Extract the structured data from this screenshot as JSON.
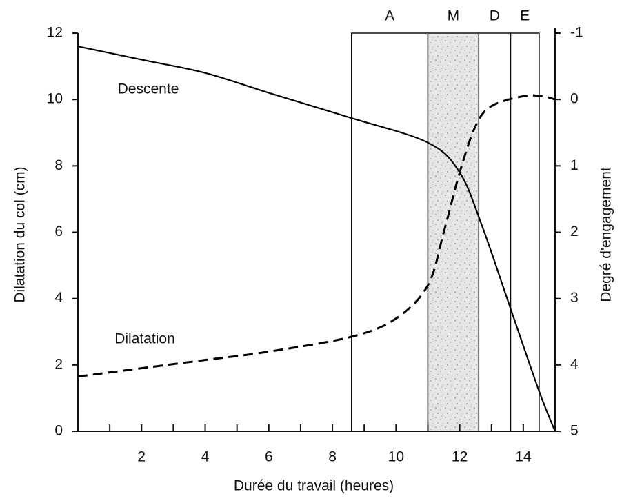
{
  "chart_data": {
    "type": "line",
    "xlabel": "Durée du travail (heures)",
    "ylabel": "Dilatation du col (cm)",
    "y2label": "Degré d'engagement",
    "xlim": [
      0,
      15
    ],
    "xticks": [
      2,
      4,
      6,
      8,
      10,
      12,
      14
    ],
    "xminor_ticks": [
      1,
      3,
      5,
      7,
      9,
      11,
      13
    ],
    "ylim": [
      0,
      12
    ],
    "yticks": [
      0,
      2,
      4,
      6,
      8,
      10,
      12
    ],
    "y2lim": [
      5,
      -1
    ],
    "y2ticks": [
      5,
      4,
      3,
      2,
      1,
      0,
      -1
    ],
    "phases": [
      {
        "label": "A",
        "start": 8.6,
        "end": 11,
        "shaded": false
      },
      {
        "label": "M",
        "start": 11,
        "end": 12.6,
        "shaded": true
      },
      {
        "label": "D",
        "start": 12.6,
        "end": 13.6,
        "shaded": false
      },
      {
        "label": "E",
        "start": 13.6,
        "end": 14.5,
        "shaded": false
      }
    ],
    "series": [
      {
        "name": "Descente",
        "color": "#000000",
        "dash": false,
        "axis": "y2",
        "x": [
          0,
          2,
          4,
          6,
          8.6,
          11,
          12,
          12.7,
          13.6,
          14.5,
          15
        ],
        "values": [
          -0.8,
          -0.6,
          -0.4,
          -0.1,
          0.28,
          0.65,
          1.1,
          1.9,
          3.15,
          4.4,
          5
        ]
      },
      {
        "name": "Dilatation",
        "color": "#000000",
        "dash": true,
        "axis": "y",
        "x": [
          0,
          2,
          4,
          6,
          8.6,
          10,
          11,
          11.5,
          12,
          12.5,
          13,
          14,
          14.6,
          15
        ],
        "values": [
          1.65,
          1.9,
          2.15,
          2.4,
          2.85,
          3.4,
          4.4,
          6,
          7.8,
          9.2,
          9.8,
          10.1,
          10.1,
          10
        ]
      }
    ]
  }
}
